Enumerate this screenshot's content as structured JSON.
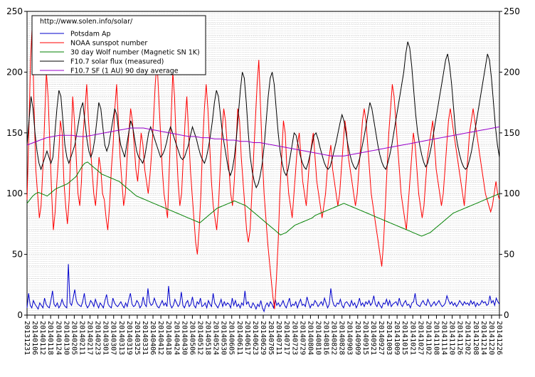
{
  "chart_data": {
    "type": "line",
    "x_labels": [
      "20131231",
      "20140106",
      "20140112",
      "20140118",
      "20140124",
      "20140130",
      "20140205",
      "20140211",
      "20140217",
      "20140223",
      "20140301",
      "20140307",
      "20140313",
      "20140319",
      "20140325",
      "20140331",
      "20140406",
      "20140412",
      "20140418",
      "20140424",
      "20140430",
      "20140506",
      "20140512",
      "20140518",
      "20140524",
      "20140530",
      "20140605",
      "20140611",
      "20140617",
      "20140623",
      "20140629",
      "20140705",
      "20140711",
      "20140717",
      "20140723",
      "20140729",
      "20140804",
      "20140810",
      "20140816",
      "20140822",
      "20140828",
      "20140903",
      "20140909",
      "20140915",
      "20140921",
      "20140927",
      "20141003",
      "20141009",
      "20141015",
      "20141021",
      "20141027",
      "20141102",
      "20141108",
      "20141114",
      "20141120",
      "20141126",
      "20141202",
      "20141208",
      "20141214",
      "20141220",
      "20141226"
    ],
    "y_ticks": [
      0,
      50,
      100,
      150,
      200,
      250
    ],
    "ylim": [
      0,
      250
    ],
    "grid": true,
    "legend_position": "top-left",
    "legend_header": "http://www.solen.info/solar/",
    "series": [
      {
        "name": "Potsdam Ap",
        "color": "#0000cc",
        "values": [
          6,
          18,
          8,
          6,
          12,
          9,
          7,
          5,
          10,
          8,
          6,
          14,
          9,
          7,
          6,
          12,
          20,
          9,
          7,
          10,
          6,
          8,
          13,
          9,
          7,
          6,
          42,
          10,
          8,
          14,
          21,
          12,
          9,
          8,
          7,
          11,
          18,
          9,
          6,
          8,
          12,
          10,
          7,
          13,
          9,
          6,
          10,
          8,
          6,
          12,
          17,
          9,
          7,
          6,
          14,
          10,
          8,
          7,
          9,
          11,
          8,
          6,
          10,
          7,
          13,
          18,
          9,
          7,
          8,
          12,
          10,
          6,
          8,
          15,
          9,
          7,
          22,
          11,
          8,
          9,
          14,
          10,
          7,
          6,
          9,
          12,
          8,
          10,
          7,
          24,
          9,
          6,
          8,
          13,
          10,
          7,
          9,
          19,
          8,
          6,
          10,
          12,
          7,
          9,
          15,
          8,
          6,
          11,
          9,
          14,
          7,
          8,
          10,
          6,
          12,
          9,
          7,
          18,
          10,
          8,
          6,
          9,
          13,
          7,
          11,
          8,
          10,
          9,
          6,
          14,
          8,
          12,
          7,
          9,
          6,
          10,
          8,
          20,
          9,
          11,
          7,
          6,
          10,
          8,
          5,
          9,
          7,
          12,
          6,
          3,
          8,
          10,
          7,
          11,
          9,
          6,
          13,
          8,
          10,
          7,
          9,
          12,
          8,
          6,
          10,
          14,
          7,
          9,
          8,
          11,
          6,
          10,
          13,
          8,
          9,
          7,
          15,
          10,
          6,
          9,
          8,
          12,
          10,
          7,
          9,
          11,
          8,
          14,
          10,
          6,
          9,
          22,
          12,
          8,
          7,
          10,
          9,
          13,
          8,
          6,
          10,
          11,
          9,
          7,
          12,
          8,
          10,
          6,
          9,
          14,
          8,
          10,
          7,
          11,
          9,
          12,
          8,
          10,
          16,
          9,
          7,
          11,
          8,
          6,
          10,
          9,
          13,
          8,
          12,
          7,
          9,
          10,
          11,
          8,
          14,
          9,
          7,
          10,
          12,
          8,
          9,
          6,
          10,
          11,
          18,
          9,
          8,
          7,
          10,
          12,
          9,
          8,
          13,
          10,
          7,
          9,
          11,
          8,
          10,
          12,
          9,
          7,
          8,
          10,
          16,
          12,
          9,
          11,
          8,
          10,
          7,
          9,
          12,
          10,
          8,
          11,
          9,
          10,
          8,
          12,
          9,
          11,
          7,
          10,
          8,
          9,
          12,
          10,
          11,
          8,
          9,
          16,
          10,
          12,
          8,
          14,
          11,
          9
        ]
      },
      {
        "name": "NOAA sunspot number",
        "color": "#ff0000",
        "values": [
          95,
          150,
          210,
          240,
          170,
          120,
          100,
          80,
          90,
          120,
          160,
          200,
          180,
          140,
          100,
          70,
          85,
          110,
          130,
          160,
          150,
          110,
          90,
          75,
          95,
          140,
          180,
          160,
          130,
          100,
          90,
          110,
          150,
          170,
          190,
          160,
          140,
          120,
          100,
          90,
          110,
          130,
          120,
          100,
          95,
          80,
          70,
          90,
          120,
          140,
          170,
          190,
          160,
          130,
          110,
          90,
          100,
          130,
          150,
          170,
          160,
          140,
          120,
          110,
          130,
          150,
          140,
          120,
          110,
          100,
          115,
          135,
          160,
          190,
          210,
          180,
          150,
          120,
          100,
          90,
          80,
          120,
          160,
          200,
          180,
          140,
          110,
          90,
          100,
          130,
          160,
          180,
          150,
          120,
          100,
          80,
          60,
          50,
          70,
          100,
          140,
          170,
          190,
          170,
          140,
          110,
          90,
          80,
          70,
          90,
          120,
          150,
          170,
          160,
          140,
          120,
          100,
          90,
          110,
          140,
          170,
          160,
          130,
          110,
          90,
          70,
          60,
          70,
          100,
          130,
          160,
          190,
          210,
          170,
          130,
          100,
          80,
          60,
          45,
          30,
          15,
          5,
          30,
          60,
          100,
          130,
          160,
          150,
          120,
          100,
          90,
          80,
          100,
          120,
          140,
          150,
          130,
          110,
          100,
          90,
          110,
          130,
          140,
          150,
          130,
          110,
          100,
          90,
          80,
          90,
          100,
          120,
          130,
          140,
          120,
          110,
          100,
          90,
          100,
          120,
          140,
          160,
          150,
          130,
          120,
          110,
          100,
          90,
          100,
          120,
          140,
          160,
          170,
          160,
          140,
          120,
          100,
          90,
          80,
          70,
          60,
          50,
          40,
          60,
          90,
          120,
          150,
          170,
          190,
          180,
          160,
          140,
          120,
          100,
          90,
          80,
          70,
          90,
          110,
          130,
          150,
          140,
          120,
          100,
          90,
          80,
          90,
          110,
          130,
          140,
          150,
          160,
          140,
          120,
          110,
          100,
          90,
          100,
          120,
          140,
          160,
          170,
          160,
          150,
          140,
          130,
          120,
          110,
          100,
          90,
          110,
          130,
          150,
          160,
          170,
          160,
          150,
          140,
          130,
          120,
          110,
          100,
          95,
          90,
          85,
          90,
          100,
          110,
          100,
          95
        ]
      },
      {
        "name": "30 day Wolf number (Magnetic SN 1K)",
        "color": "#008000",
        "values": [
          92,
          95,
          98,
          100,
          101,
          100,
          99,
          98,
          100,
          102,
          104,
          105,
          106,
          107,
          108,
          110,
          112,
          114,
          118,
          122,
          125,
          126,
          124,
          122,
          120,
          118,
          116,
          115,
          114,
          113,
          112,
          111,
          110,
          108,
          106,
          104,
          102,
          100,
          98,
          97,
          96,
          95,
          94,
          93,
          92,
          91,
          90,
          89,
          88,
          87,
          86,
          85,
          84,
          83,
          82,
          81,
          80,
          79,
          78,
          77,
          76,
          78,
          80,
          82,
          84,
          86,
          88,
          89,
          90,
          91,
          92,
          93,
          94,
          93,
          92,
          91,
          90,
          88,
          86,
          84,
          82,
          80,
          78,
          76,
          74,
          72,
          70,
          68,
          66,
          67,
          68,
          70,
          72,
          74,
          75,
          76,
          77,
          78,
          79,
          80,
          82,
          83,
          84,
          85,
          86,
          87,
          88,
          89,
          90,
          91,
          92,
          91,
          90,
          89,
          88,
          87,
          86,
          85,
          84,
          83,
          82,
          81,
          80,
          79,
          78,
          77,
          76,
          75,
          74,
          73,
          72,
          71,
          70,
          69,
          68,
          67,
          66,
          65,
          66,
          67,
          68,
          70,
          72,
          74,
          76,
          78,
          80,
          82,
          84,
          85,
          86,
          87,
          88,
          89,
          90,
          91,
          92,
          93,
          94,
          95,
          96,
          97,
          98,
          99,
          100
        ]
      },
      {
        "name": "F10.7 solar flux (measured)",
        "color": "#000000",
        "values": [
          140,
          160,
          180,
          170,
          150,
          135,
          125,
          120,
          125,
          130,
          135,
          130,
          125,
          130,
          150,
          170,
          185,
          180,
          160,
          140,
          130,
          125,
          130,
          135,
          140,
          150,
          160,
          170,
          175,
          160,
          145,
          135,
          130,
          135,
          145,
          160,
          175,
          170,
          155,
          140,
          135,
          140,
          150,
          160,
          170,
          165,
          150,
          140,
          135,
          130,
          140,
          150,
          160,
          155,
          145,
          135,
          130,
          128,
          125,
          130,
          140,
          150,
          155,
          150,
          145,
          140,
          135,
          130,
          132,
          136,
          142,
          150,
          155,
          150,
          145,
          140,
          135,
          130,
          128,
          130,
          135,
          140,
          148,
          155,
          150,
          145,
          138,
          132,
          128,
          125,
          130,
          138,
          148,
          160,
          175,
          185,
          180,
          165,
          150,
          140,
          130,
          120,
          115,
          120,
          130,
          145,
          165,
          185,
          200,
          195,
          175,
          150,
          130,
          118,
          110,
          105,
          108,
          115,
          125,
          140,
          160,
          180,
          195,
          200,
          190,
          170,
          150,
          135,
          125,
          118,
          115,
          120,
          130,
          140,
          150,
          148,
          140,
          132,
          126,
          122,
          120,
          125,
          132,
          140,
          148,
          150,
          145,
          138,
          132,
          126,
          122,
          120,
          122,
          128,
          135,
          142,
          150,
          158,
          165,
          160,
          150,
          140,
          132,
          126,
          122,
          120,
          124,
          130,
          138,
          146,
          155,
          165,
          175,
          170,
          160,
          150,
          140,
          132,
          126,
          122,
          120,
          125,
          132,
          140,
          150,
          160,
          170,
          180,
          190,
          200,
          215,
          225,
          220,
          205,
          185,
          165,
          150,
          140,
          132,
          126,
          122,
          125,
          132,
          140,
          150,
          160,
          170,
          180,
          190,
          200,
          210,
          215,
          205,
          190,
          170,
          150,
          140,
          132,
          126,
          122,
          120,
          122,
          128,
          135,
          145,
          155,
          165,
          175,
          185,
          195,
          205,
          215,
          210,
          195,
          175,
          155,
          140,
          130
        ]
      },
      {
        "name": "F10.7 SF (1 AU) 90 day average",
        "color": "#9900cc",
        "values": [
          140,
          142,
          144,
          146,
          147,
          148,
          148,
          148,
          147,
          147,
          148,
          149,
          150,
          151,
          152,
          153,
          154,
          154,
          154,
          153,
          152,
          151,
          150,
          149,
          148,
          147,
          147,
          146,
          146,
          145,
          145,
          144,
          144,
          143,
          143,
          142,
          142,
          141,
          140,
          139,
          138,
          137,
          136,
          135,
          134,
          133,
          132,
          131,
          131,
          131,
          132,
          133,
          134,
          135,
          136,
          137,
          138,
          139,
          140,
          141,
          142,
          143,
          144,
          145,
          146,
          147,
          148,
          149,
          150,
          151,
          152,
          153,
          154,
          155
        ]
      }
    ]
  }
}
